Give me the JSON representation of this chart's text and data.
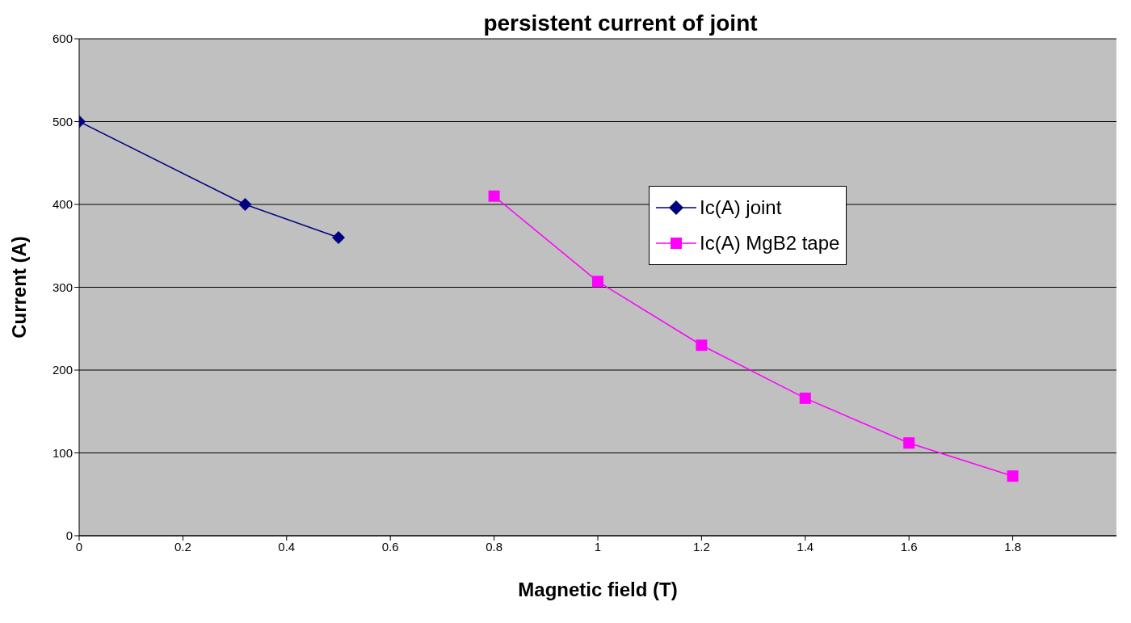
{
  "chart_data": {
    "type": "line",
    "title": "persistent current of joint",
    "xlabel": "Magnetic field (T)",
    "ylabel": "Current (A)",
    "xlim": [
      0,
      2
    ],
    "xticks": [
      0,
      0.2,
      0.4,
      0.6,
      0.8,
      1,
      1.2,
      1.4,
      1.6,
      1.8
    ],
    "ylim": [
      0,
      600
    ],
    "yticks": [
      0,
      100,
      200,
      300,
      400,
      500,
      600
    ],
    "grid": "y",
    "legend": "right",
    "series": [
      {
        "name": "Ic(A) joint",
        "color": "#000080",
        "marker": "diamond",
        "x": [
          0,
          0.32,
          0.5
        ],
        "values": [
          500,
          400,
          360
        ]
      },
      {
        "name": "Ic(A) MgB2 tape",
        "color": "#ff00ff",
        "marker": "square",
        "x": [
          0.8,
          1,
          1.2,
          1.4,
          1.6,
          1.8
        ],
        "values": [
          410,
          307,
          230,
          166,
          112,
          72
        ]
      }
    ]
  }
}
